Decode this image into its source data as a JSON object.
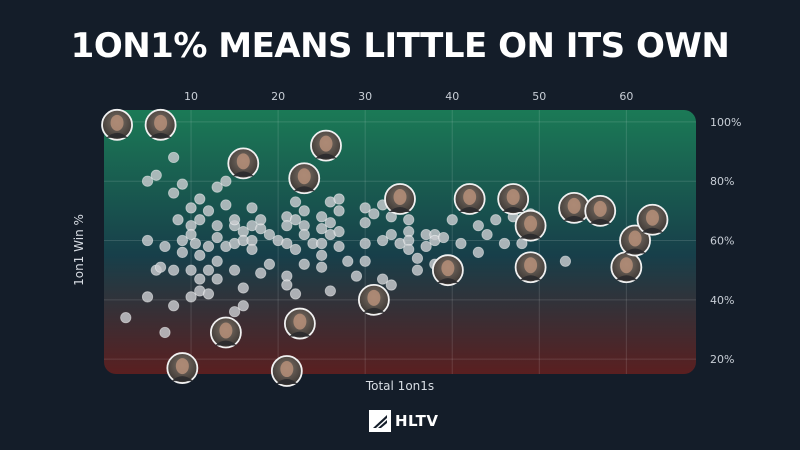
{
  "title": "1ON1% MEANS LITTLE ON ITS OWN",
  "brand": {
    "name": "HLTV"
  },
  "chart_data": {
    "type": "scatter",
    "xlabel": "Total 1on1s",
    "ylabel": "1on1 Win %",
    "xlim": [
      0,
      68
    ],
    "ylim": [
      15,
      104
    ],
    "xticks": [
      10,
      20,
      30,
      40,
      50,
      60
    ],
    "yticks": [
      20,
      40,
      60,
      80,
      100
    ],
    "yticklabels": [
      "20%",
      "40%",
      "60%",
      "80%",
      "100%"
    ],
    "grid": true,
    "background_gradient": [
      "#1b7a56",
      "#173f4a",
      "#5a1f20"
    ],
    "points": [
      {
        "x": 2.5,
        "y": 34
      },
      {
        "x": 5,
        "y": 60
      },
      {
        "x": 5,
        "y": 41
      },
      {
        "x": 5,
        "y": 80
      },
      {
        "x": 6,
        "y": 82
      },
      {
        "x": 6,
        "y": 50
      },
      {
        "x": 6.5,
        "y": 51
      },
      {
        "x": 7,
        "y": 58
      },
      {
        "x": 7,
        "y": 29
      },
      {
        "x": 8,
        "y": 88
      },
      {
        "x": 8,
        "y": 76
      },
      {
        "x": 8,
        "y": 50
      },
      {
        "x": 8,
        "y": 38
      },
      {
        "x": 8.5,
        "y": 67
      },
      {
        "x": 9,
        "y": 79
      },
      {
        "x": 9,
        "y": 60
      },
      {
        "x": 9,
        "y": 56
      },
      {
        "x": 10,
        "y": 71
      },
      {
        "x": 10,
        "y": 65
      },
      {
        "x": 10,
        "y": 62
      },
      {
        "x": 10,
        "y": 50
      },
      {
        "x": 10,
        "y": 41
      },
      {
        "x": 10.5,
        "y": 59
      },
      {
        "x": 11,
        "y": 74
      },
      {
        "x": 11,
        "y": 67
      },
      {
        "x": 11,
        "y": 55
      },
      {
        "x": 11,
        "y": 47
      },
      {
        "x": 11,
        "y": 43
      },
      {
        "x": 12,
        "y": 70
      },
      {
        "x": 12,
        "y": 58
      },
      {
        "x": 12,
        "y": 50
      },
      {
        "x": 12,
        "y": 42
      },
      {
        "x": 13,
        "y": 78
      },
      {
        "x": 13,
        "y": 65
      },
      {
        "x": 13,
        "y": 61
      },
      {
        "x": 13,
        "y": 53
      },
      {
        "x": 13,
        "y": 47
      },
      {
        "x": 14,
        "y": 80
      },
      {
        "x": 14,
        "y": 72
      },
      {
        "x": 14,
        "y": 58
      },
      {
        "x": 15,
        "y": 65
      },
      {
        "x": 15,
        "y": 67
      },
      {
        "x": 15,
        "y": 59
      },
      {
        "x": 15,
        "y": 50
      },
      {
        "x": 15,
        "y": 36
      },
      {
        "x": 16,
        "y": 63
      },
      {
        "x": 16,
        "y": 60
      },
      {
        "x": 16,
        "y": 44
      },
      {
        "x": 16,
        "y": 38
      },
      {
        "x": 17,
        "y": 71
      },
      {
        "x": 17,
        "y": 65
      },
      {
        "x": 17,
        "y": 60
      },
      {
        "x": 17,
        "y": 57
      },
      {
        "x": 18,
        "y": 64
      },
      {
        "x": 18,
        "y": 67
      },
      {
        "x": 18,
        "y": 49
      },
      {
        "x": 19,
        "y": 62
      },
      {
        "x": 19,
        "y": 52
      },
      {
        "x": 20,
        "y": 60
      },
      {
        "x": 21,
        "y": 68
      },
      {
        "x": 21,
        "y": 65
      },
      {
        "x": 21,
        "y": 59
      },
      {
        "x": 21,
        "y": 48
      },
      {
        "x": 21,
        "y": 45
      },
      {
        "x": 22,
        "y": 73
      },
      {
        "x": 22,
        "y": 67
      },
      {
        "x": 22,
        "y": 57
      },
      {
        "x": 22,
        "y": 42
      },
      {
        "x": 23,
        "y": 70
      },
      {
        "x": 23,
        "y": 65
      },
      {
        "x": 23,
        "y": 62
      },
      {
        "x": 23,
        "y": 52
      },
      {
        "x": 24,
        "y": 59
      },
      {
        "x": 25,
        "y": 68
      },
      {
        "x": 25,
        "y": 64
      },
      {
        "x": 25,
        "y": 59
      },
      {
        "x": 25,
        "y": 55
      },
      {
        "x": 25,
        "y": 51
      },
      {
        "x": 26,
        "y": 73
      },
      {
        "x": 26,
        "y": 66
      },
      {
        "x": 26,
        "y": 62
      },
      {
        "x": 26,
        "y": 43
      },
      {
        "x": 27,
        "y": 74
      },
      {
        "x": 27,
        "y": 70
      },
      {
        "x": 27,
        "y": 63
      },
      {
        "x": 27,
        "y": 58
      },
      {
        "x": 28,
        "y": 53
      },
      {
        "x": 29,
        "y": 48
      },
      {
        "x": 30,
        "y": 71
      },
      {
        "x": 30,
        "y": 66
      },
      {
        "x": 30,
        "y": 59
      },
      {
        "x": 30,
        "y": 53
      },
      {
        "x": 31,
        "y": 69
      },
      {
        "x": 32,
        "y": 72
      },
      {
        "x": 32,
        "y": 60
      },
      {
        "x": 32,
        "y": 47
      },
      {
        "x": 33,
        "y": 68
      },
      {
        "x": 33,
        "y": 62
      },
      {
        "x": 33,
        "y": 45
      },
      {
        "x": 34,
        "y": 59
      },
      {
        "x": 35,
        "y": 67
      },
      {
        "x": 35,
        "y": 63
      },
      {
        "x": 35,
        "y": 60
      },
      {
        "x": 35,
        "y": 57
      },
      {
        "x": 36,
        "y": 54
      },
      {
        "x": 36,
        "y": 50
      },
      {
        "x": 37,
        "y": 62
      },
      {
        "x": 37,
        "y": 58
      },
      {
        "x": 38,
        "y": 62
      },
      {
        "x": 38,
        "y": 60
      },
      {
        "x": 38,
        "y": 52
      },
      {
        "x": 39,
        "y": 61
      },
      {
        "x": 40,
        "y": 67
      },
      {
        "x": 41,
        "y": 59
      },
      {
        "x": 41,
        "y": 74
      },
      {
        "x": 43,
        "y": 65
      },
      {
        "x": 43,
        "y": 56
      },
      {
        "x": 44,
        "y": 62
      },
      {
        "x": 45,
        "y": 67
      },
      {
        "x": 46,
        "y": 59
      },
      {
        "x": 47,
        "y": 68
      },
      {
        "x": 48,
        "y": 59
      },
      {
        "x": 49,
        "y": 69
      },
      {
        "x": 53,
        "y": 53
      },
      {
        "x": 55,
        "y": 70
      }
    ],
    "highlighted_points": [
      {
        "x": 1.5,
        "y": 99
      },
      {
        "x": 6.5,
        "y": 99
      },
      {
        "x": 16,
        "y": 86
      },
      {
        "x": 21,
        "y": 16
      },
      {
        "x": 9,
        "y": 17
      },
      {
        "x": 14,
        "y": 29
      },
      {
        "x": 22.5,
        "y": 32
      },
      {
        "x": 25.5,
        "y": 92
      },
      {
        "x": 23,
        "y": 81
      },
      {
        "x": 31,
        "y": 40
      },
      {
        "x": 34,
        "y": 74
      },
      {
        "x": 39.5,
        "y": 50
      },
      {
        "x": 42,
        "y": 74
      },
      {
        "x": 47,
        "y": 74
      },
      {
        "x": 49,
        "y": 65
      },
      {
        "x": 49,
        "y": 51
      },
      {
        "x": 54,
        "y": 71
      },
      {
        "x": 57,
        "y": 70
      },
      {
        "x": 60,
        "y": 51
      },
      {
        "x": 61,
        "y": 60
      },
      {
        "x": 63,
        "y": 67
      }
    ]
  }
}
